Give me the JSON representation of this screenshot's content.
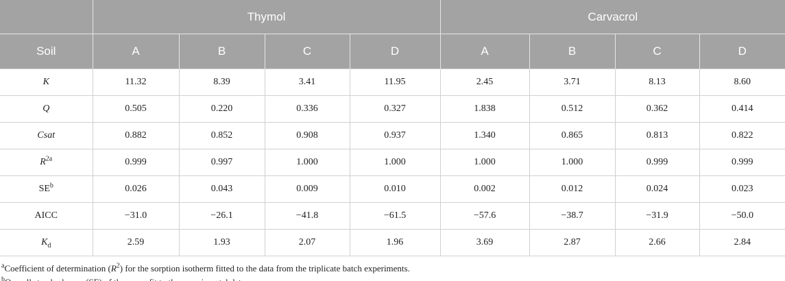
{
  "table": {
    "groups": [
      {
        "label": "Thymol",
        "span": 4
      },
      {
        "label": "Carvacrol",
        "span": 4
      }
    ],
    "columns": [
      "Soil",
      "A",
      "B",
      "C",
      "D",
      "A",
      "B",
      "C",
      "D"
    ],
    "rows": [
      {
        "label": "K",
        "italic": true,
        "values": [
          "11.32",
          "8.39",
          "3.41",
          "11.95",
          "2.45",
          "3.71",
          "8.13",
          "8.60"
        ]
      },
      {
        "label": "Q",
        "italic": true,
        "values": [
          "0.505",
          "0.220",
          "0.336",
          "0.327",
          "1.838",
          "0.512",
          "0.362",
          "0.414"
        ]
      },
      {
        "label": "Csat",
        "italic": true,
        "values": [
          "0.882",
          "0.852",
          "0.908",
          "0.937",
          "1.340",
          "0.865",
          "0.813",
          "0.822"
        ]
      },
      {
        "label": "R",
        "italic": true,
        "sup": "2a",
        "values": [
          "0.999",
          "0.997",
          "1.000",
          "1.000",
          "1.000",
          "1.000",
          "0.999",
          "0.999"
        ]
      },
      {
        "label": "SE",
        "italic": false,
        "sup": "b",
        "values": [
          "0.026",
          "0.043",
          "0.009",
          "0.010",
          "0.002",
          "0.012",
          "0.024",
          "0.023"
        ]
      },
      {
        "label": "AICC",
        "italic": false,
        "values": [
          "−31.0",
          "−26.1",
          "−41.8",
          "−61.5",
          "−57.6",
          "−38.7",
          "−31.9",
          "−50.0"
        ]
      },
      {
        "label": "K",
        "italic": true,
        "sub": "d",
        "values": [
          "2.59",
          "1.93",
          "2.07",
          "1.96",
          "3.69",
          "2.87",
          "2.66",
          "2.84"
        ]
      }
    ]
  },
  "footnotes": [
    {
      "mark": "a",
      "parts": [
        {
          "text": "Coefficient of determination (",
          "style": "normal"
        },
        {
          "text": "R",
          "style": "italic"
        },
        {
          "text": "2",
          "style": "sup"
        },
        {
          "text": ") for the sorption isotherm fitted to the data from the triplicate batch experiments.",
          "style": "normal"
        }
      ]
    },
    {
      "mark": "b",
      "parts": [
        {
          "text": "Overall standard error (SE) of the curve fit to the experimental data.",
          "style": "normal"
        }
      ]
    }
  ]
}
